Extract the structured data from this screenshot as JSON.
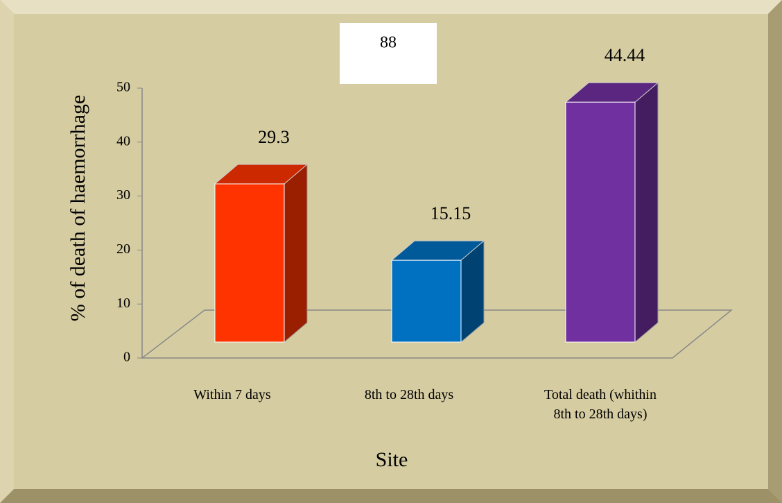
{
  "chart_data": {
    "type": "bar3d",
    "annotation": "88",
    "xlabel": "Site",
    "ylabel": "% of death of haemorrhage",
    "categories": [
      "Within 7 days",
      "8th to 28th days",
      "Total death (whithin 8th to 28th days)"
    ],
    "values": [
      29.3,
      15.15,
      44.44
    ],
    "colors": [
      "#ff3300",
      "#0070c0",
      "#7030a0"
    ],
    "ylim": [
      0,
      50
    ],
    "yticks": [
      0,
      10,
      20,
      30,
      40,
      50
    ]
  }
}
